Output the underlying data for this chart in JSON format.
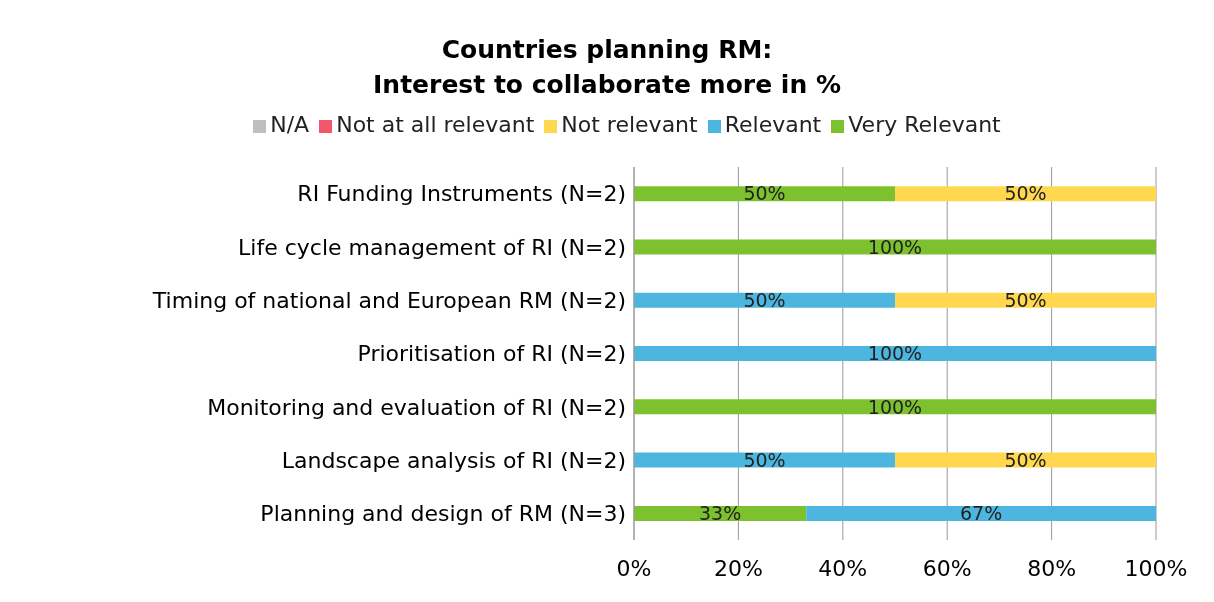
{
  "chart_data": {
    "type": "bar",
    "orientation": "horizontal",
    "stacked": true,
    "title": "Countries planning RM:\nInterest to collaborate more in %",
    "categories": [
      "RI Funding Instruments (N=2)",
      "Life cycle management of RI (N=2)",
      "Timing of national and European RM (N=2)",
      "Prioritisation of RI (N=2)",
      "Monitoring and evaluation of RI (N=2)",
      "Landscape analysis of RI (N=2)",
      "Planning and design of RM (N=3)"
    ],
    "series": [
      {
        "name": "Very Relevant",
        "color": "#7dc22e",
        "values": [
          50,
          100,
          null,
          null,
          100,
          null,
          33
        ],
        "value_labels": [
          "50%",
          "100%",
          null,
          null,
          "100%",
          null,
          "33%"
        ]
      },
      {
        "name": "Relevant",
        "color": "#4db6df",
        "values": [
          null,
          null,
          50,
          100,
          null,
          50,
          67
        ],
        "value_labels": [
          null,
          null,
          "50%",
          "100%",
          null,
          "50%",
          "67%"
        ]
      },
      {
        "name": "Not relevant",
        "color": "#ffd84f",
        "values": [
          50,
          null,
          50,
          null,
          null,
          50,
          null
        ],
        "value_labels": [
          "50%",
          null,
          "50%",
          null,
          null,
          "50%",
          null
        ]
      },
      {
        "name": "Not at all relevant",
        "color": "#f2566b",
        "values": [
          null,
          null,
          null,
          null,
          null,
          null,
          null
        ]
      },
      {
        "name": "N/A",
        "color": "#bfbfbf",
        "values": [
          null,
          null,
          null,
          null,
          null,
          null,
          null
        ]
      }
    ],
    "xlim": [
      0,
      100
    ],
    "xticks": [
      {
        "value": 0,
        "label": "0%"
      },
      {
        "value": 20,
        "label": "20%"
      },
      {
        "value": 40,
        "label": "40%"
      },
      {
        "value": 60,
        "label": "60%"
      },
      {
        "value": 80,
        "label": "80%"
      },
      {
        "value": 100,
        "label": "100%"
      }
    ],
    "grid": "x",
    "legend": "top"
  }
}
